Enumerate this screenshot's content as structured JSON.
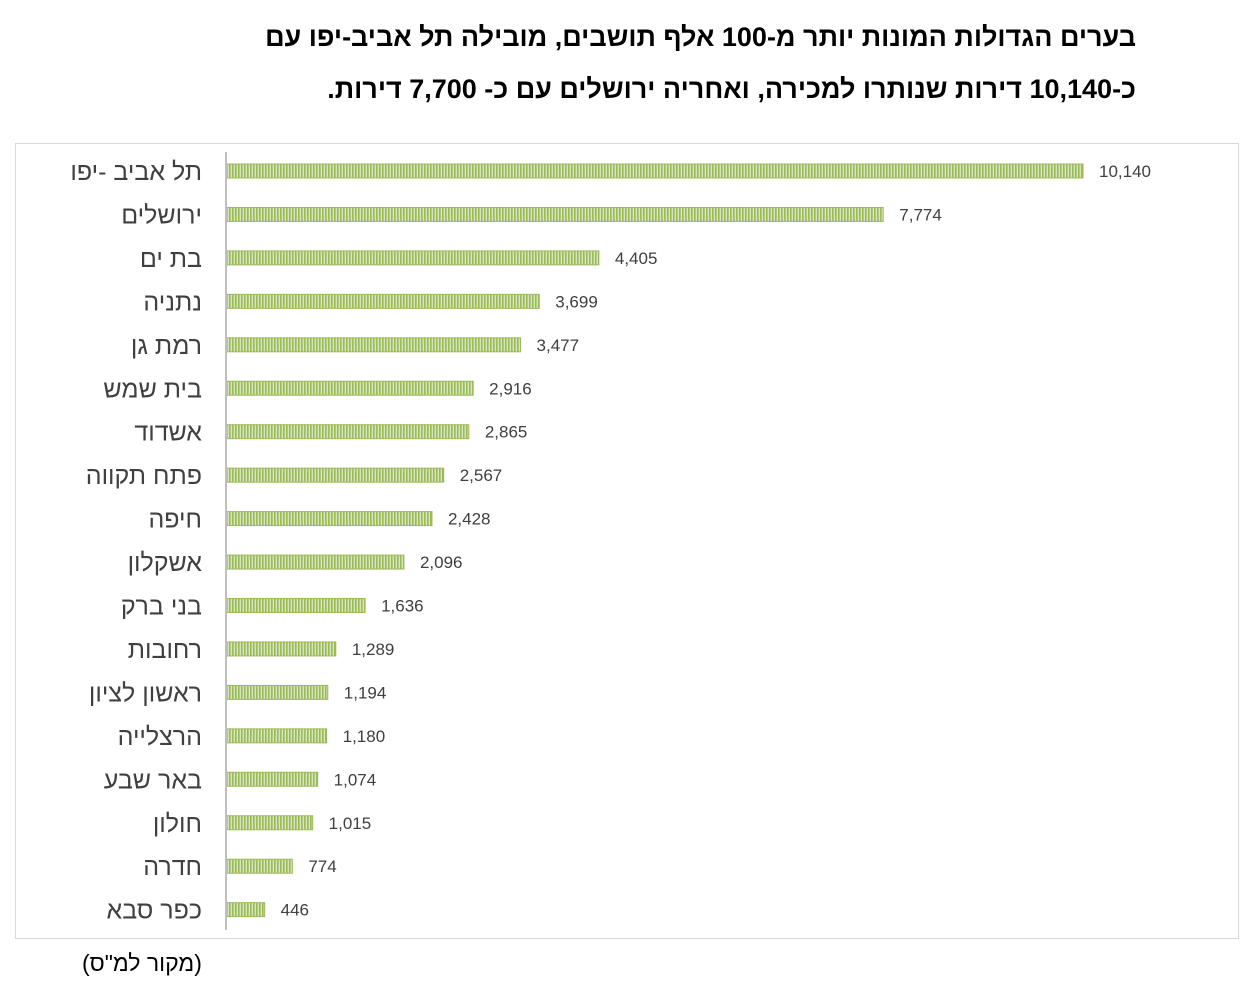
{
  "title_lines": [
    "בערים הגדולות המונות יותר מ-100 אלף תושבים, מובילה תל אביב-יפו עם",
    "כ-10,140 דירות שנותרו למכירה, ואחריה ירושלים עם כ- 7,700 דירות."
  ],
  "source": "(מקור למ\"ס)",
  "chart_data": {
    "type": "bar",
    "orientation": "horizontal",
    "categories": [
      "תל אביב -יפו",
      "ירושלים",
      "בת ים",
      "נתניה",
      "רמת גן",
      "בית שמש",
      "אשדוד",
      "פתח תקווה",
      "חיפה",
      "אשקלון",
      "בני ברק",
      "רחובות",
      "ראשון לציון",
      "הרצלייה",
      "באר שבע",
      "חולון",
      "חדרה",
      "כפר סבא"
    ],
    "values": [
      10140,
      7774,
      4405,
      3699,
      3477,
      2916,
      2865,
      2567,
      2428,
      2096,
      1636,
      1289,
      1194,
      1180,
      1074,
      1015,
      774,
      446
    ],
    "value_labels": [
      "10,140",
      "7,774",
      "4,405",
      "3,699",
      "3,477",
      "2,916",
      "2,865",
      "2,567",
      "2,428",
      "2,096",
      "1,636",
      "1,289",
      "1,194",
      "1,180",
      "1,074",
      "1,015",
      "774",
      "446"
    ],
    "xlim": [
      0,
      12000
    ],
    "bar_color": "#9bbb59",
    "bar_pattern": "vertical-stripes",
    "grid": false,
    "legend": "none"
  }
}
